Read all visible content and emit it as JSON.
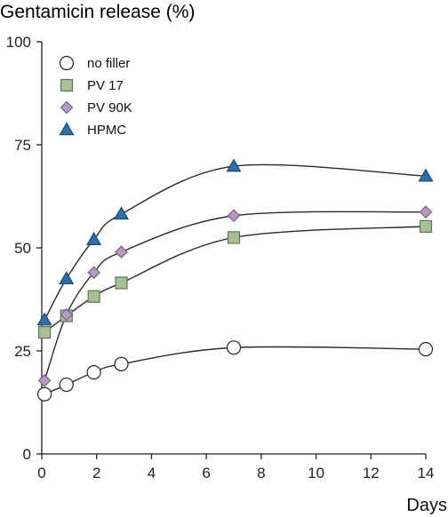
{
  "chart_data": {
    "type": "line",
    "title": "Gentamicin release (%)",
    "xlabel": "Days",
    "ylabel": "Gentamicin release (%)",
    "xlim": [
      0,
      14
    ],
    "ylim": [
      0,
      100
    ],
    "xticks": [
      0,
      2,
      4,
      6,
      8,
      10,
      12,
      14
    ],
    "yticks": [
      0,
      25,
      50,
      75,
      100
    ],
    "grid": false,
    "legend_position": "top-left",
    "series": [
      {
        "name": "no filler",
        "marker": "circle",
        "fill": "#ffffff",
        "stroke": "#222222",
        "points": [
          [
            0.1,
            14.5
          ],
          [
            0.9,
            16.8
          ],
          [
            1.9,
            19.8
          ],
          [
            2.9,
            21.8
          ],
          [
            7.0,
            25.8
          ],
          [
            14.0,
            25.4
          ]
        ]
      },
      {
        "name": "PV 17",
        "marker": "square",
        "fill": "#a9bf96",
        "stroke": "#5f7458",
        "points": [
          [
            0.1,
            29.5
          ],
          [
            0.9,
            33.5
          ],
          [
            1.9,
            38.2
          ],
          [
            2.9,
            41.5
          ],
          [
            7.0,
            52.5
          ],
          [
            14.0,
            55.2
          ]
        ]
      },
      {
        "name": "PV 90K",
        "marker": "diamond",
        "fill": "#b69ac4",
        "stroke": "#7c5e89",
        "points": [
          [
            0.1,
            17.8
          ],
          [
            0.9,
            33.8
          ],
          [
            1.9,
            44.0
          ],
          [
            2.9,
            49.0
          ],
          [
            7.0,
            57.8
          ],
          [
            14.0,
            58.7
          ]
        ]
      },
      {
        "name": "HPMC",
        "marker": "triangle",
        "fill": "#2f6fa6",
        "stroke": "#1b4a73",
        "points": [
          [
            0.1,
            32.5
          ],
          [
            0.9,
            42.5
          ],
          [
            1.9,
            52.0
          ],
          [
            2.9,
            58.2
          ],
          [
            7.0,
            69.8
          ],
          [
            14.0,
            67.4
          ]
        ]
      }
    ]
  }
}
